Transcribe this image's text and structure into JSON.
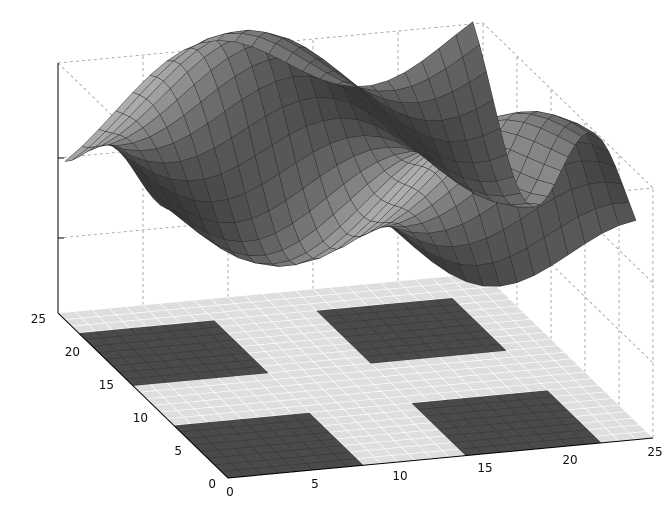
{
  "chart_data": {
    "type": "surface",
    "title": "",
    "xlabel": "",
    "ylabel": "",
    "zlabel": "",
    "xlim": [
      0,
      25
    ],
    "ylim": [
      0,
      25
    ],
    "x_ticks": [
      "0",
      "5",
      "10",
      "15",
      "20",
      "25"
    ],
    "y_ticks": [
      "0",
      "5",
      "10",
      "15",
      "20",
      "25"
    ],
    "z_ticks": [
      "",
      "",
      ""
    ],
    "grid": true,
    "surface": {
      "kind": "periodic wave surface",
      "grid_size": [
        25,
        25
      ],
      "peaks": [
        [
          10,
          22
        ],
        [
          15,
          15
        ],
        [
          20,
          8
        ]
      ],
      "troughs": [
        [
          5,
          18
        ],
        [
          10,
          10
        ],
        [
          15,
          3
        ],
        [
          22,
          20
        ]
      ],
      "color": "#6e6e6e"
    },
    "floor_pattern": {
      "grid_size": [
        25,
        25
      ],
      "background_color": "#dedede",
      "square_color": "#4a4a4a",
      "squares": [
        {
          "x": [
            0,
            8
          ],
          "y": [
            0,
            8
          ]
        },
        {
          "x": [
            0,
            8
          ],
          "y": [
            14,
            22
          ]
        },
        {
          "x": [
            14,
            22
          ],
          "y": [
            0,
            8
          ]
        },
        {
          "x": [
            14,
            22
          ],
          "y": [
            14,
            22
          ]
        }
      ]
    }
  }
}
